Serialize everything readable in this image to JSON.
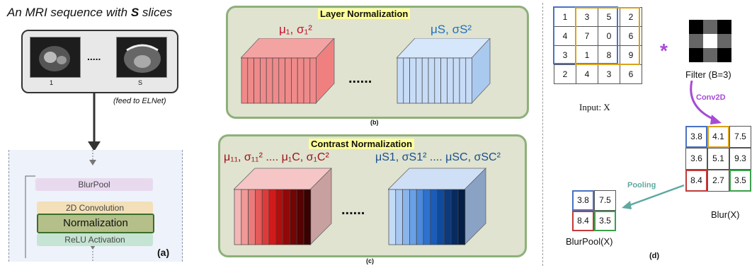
{
  "panel_a": {
    "title": "An MRI sequence with",
    "title_s": "S",
    "title_end": "slices",
    "slice_first": "1",
    "slice_last": "S",
    "dots": ".....",
    "feed_label": "(feed to ELNet)",
    "blurpool": "BlurPool",
    "conv": "2D Convolution",
    "norm": "Normalization",
    "relu": "ReLU Activation",
    "tag": "(a)"
  },
  "panel_b": {
    "title": "Layer Normalization",
    "left_stats": "μ₁, σ₁²",
    "right_stats": "μS, σS²",
    "dots": "......",
    "tag": "(b)"
  },
  "panel_c": {
    "title": "Contrast  Normalization",
    "left_stats": "μ₁₁, σ₁₁² .... μ₁C, σ₁C²",
    "right_stats": "μS1, σS1² .... μSC, σSC²",
    "dots": "......",
    "tag": "(c)"
  },
  "panel_d": {
    "input_grid": [
      [
        "1",
        "3",
        "5",
        "2"
      ],
      [
        "4",
        "7",
        "0",
        "6"
      ],
      [
        "3",
        "1",
        "8",
        "9"
      ],
      [
        "2",
        "4",
        "3",
        "6"
      ]
    ],
    "input_label": "Input: X",
    "asterisk": "*",
    "filter_label": "Filter (B=3)",
    "conv_label": "Conv2D",
    "blur_grid": [
      [
        "3.8",
        "4.1",
        "7.5"
      ],
      [
        "3.6",
        "5.1",
        "9.3"
      ],
      [
        "8.4",
        "2.7",
        "3.5"
      ]
    ],
    "blur_label": "Blur(X)",
    "pooling_label": "Pooling",
    "pool_grid": [
      [
        "3.8",
        "7.5"
      ],
      [
        "8.4",
        "3.5"
      ]
    ],
    "pool_label": "BlurPool(X)",
    "tag": "(d)"
  },
  "colors": {
    "panel_fill": "#dfe3cf",
    "panel_border": "#8eb07a",
    "red": "#c8102e",
    "blue": "#1f6fc4",
    "purple": "#a64bd6",
    "teal": "#5fa9a0"
  }
}
